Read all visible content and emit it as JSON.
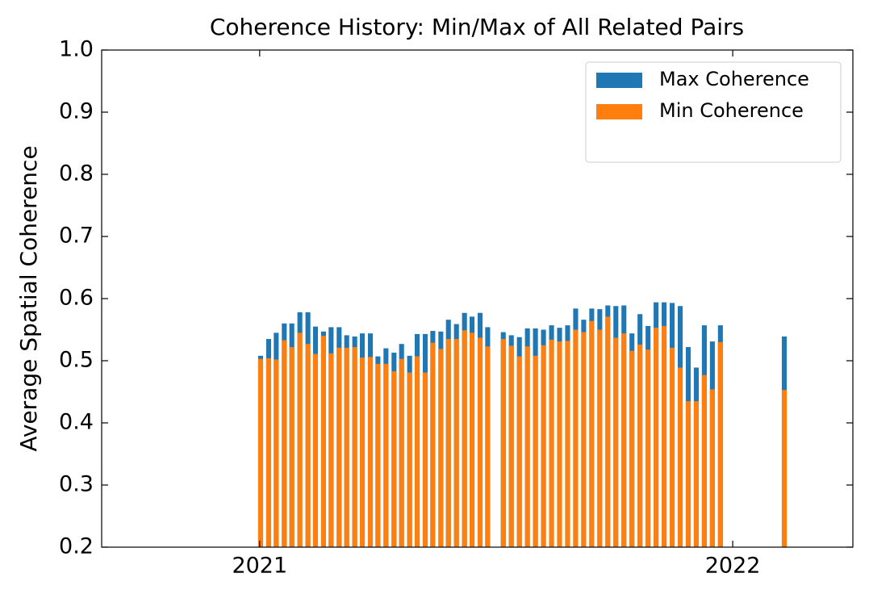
{
  "chart_data": {
    "type": "bar",
    "title": "Coherence History: Min/Max of All Related Pairs",
    "y_label": "Average Spatial Coherence",
    "x": [
      2021.002,
      2021.019,
      2021.035,
      2021.052,
      2021.068,
      2021.085,
      2021.102,
      2021.118,
      2021.135,
      2021.151,
      2021.168,
      2021.184,
      2021.201,
      2021.217,
      2021.234,
      2021.25,
      2021.267,
      2021.284,
      2021.3,
      2021.317,
      2021.333,
      2021.35,
      2021.366,
      2021.383,
      2021.399,
      2021.416,
      2021.433,
      2021.449,
      2021.466,
      2021.482,
      2021.515,
      2021.532,
      2021.549,
      2021.566,
      2021.583,
      2021.6,
      2021.617,
      2021.634,
      2021.651,
      2021.668,
      2021.685,
      2021.702,
      2021.719,
      2021.736,
      2021.753,
      2021.77,
      2021.787,
      2021.804,
      2021.821,
      2021.838,
      2021.855,
      2021.872,
      2021.889,
      2021.906,
      2021.923,
      2021.94,
      2021.957,
      2021.974,
      2022.109
    ],
    "series": [
      {
        "name": "Max Coherence",
        "color": "#1f77b4",
        "values": [
          0.508,
          0.535,
          0.545,
          0.56,
          0.56,
          0.578,
          0.578,
          0.555,
          0.547,
          0.554,
          0.554,
          0.541,
          0.539,
          0.544,
          0.544,
          0.507,
          0.52,
          0.513,
          0.527,
          0.508,
          0.543,
          0.543,
          0.548,
          0.547,
          0.566,
          0.559,
          0.577,
          0.571,
          0.577,
          0.554,
          0.546,
          0.541,
          0.538,
          0.552,
          0.552,
          0.55,
          0.557,
          0.553,
          0.557,
          0.584,
          0.566,
          0.584,
          0.583,
          0.589,
          0.588,
          0.589,
          0.544,
          0.575,
          0.556,
          0.594,
          0.594,
          0.593,
          0.588,
          0.522,
          0.489,
          0.557,
          0.531,
          0.557,
          0.539
        ]
      },
      {
        "name": "Min Coherence",
        "color": "#ff7f0e",
        "values": [
          0.503,
          0.504,
          0.502,
          0.533,
          0.522,
          0.545,
          0.527,
          0.511,
          0.54,
          0.512,
          0.521,
          0.521,
          0.522,
          0.505,
          0.506,
          0.495,
          0.495,
          0.483,
          0.503,
          0.481,
          0.507,
          0.481,
          0.529,
          0.519,
          0.535,
          0.535,
          0.549,
          0.545,
          0.537,
          0.523,
          0.535,
          0.524,
          0.507,
          0.523,
          0.508,
          0.525,
          0.534,
          0.531,
          0.532,
          0.55,
          0.546,
          0.564,
          0.55,
          0.571,
          0.537,
          0.544,
          0.516,
          0.526,
          0.518,
          0.553,
          0.556,
          0.521,
          0.489,
          0.435,
          0.435,
          0.477,
          0.454,
          0.53,
          0.453
        ]
      }
    ],
    "xlim": [
      2020.666,
      2022.254
    ],
    "xticks": [
      2021,
      2022
    ],
    "ylim": [
      0.2,
      1.0
    ],
    "yticks": [
      0.2,
      0.3,
      0.4,
      0.5,
      0.6,
      0.7,
      0.8,
      0.9,
      {
        "value": 1.0,
        "label": "1.0"
      }
    ],
    "legend": "upper right"
  }
}
